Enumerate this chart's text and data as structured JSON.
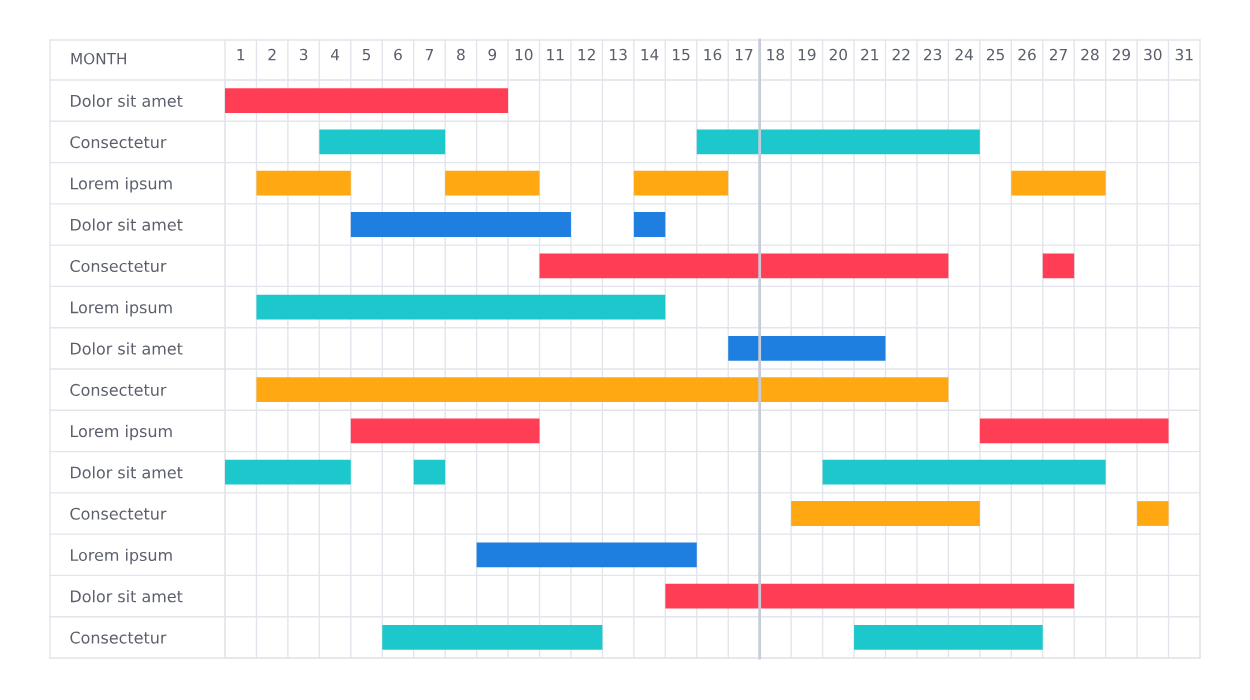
{
  "chart_data": {
    "type": "bar",
    "orientation": "horizontal",
    "xlabel": "MONTH",
    "categories": [
      "Dolor sit amet",
      "Consectetur",
      "Lorem ipsum",
      "Dolor sit amet",
      "Consectetur",
      "Lorem ipsum",
      "Dolor sit amet",
      "Consectetur",
      "Lorem ipsum",
      "Dolor sit amet",
      "Consectetur",
      "Lorem ipsum",
      "Dolor sit amet",
      "Consectetur"
    ],
    "xlim": [
      0,
      31
    ],
    "xticks": [
      {
        "value": 0.5,
        "label": "1"
      },
      {
        "value": 1.5,
        "label": "2"
      },
      {
        "value": 2.5,
        "label": "3"
      },
      {
        "value": 3.5,
        "label": "4"
      },
      {
        "value": 4.5,
        "label": "5"
      },
      {
        "value": 5.5,
        "label": "6"
      },
      {
        "value": 6.5,
        "label": "7"
      },
      {
        "value": 7.5,
        "label": "8"
      },
      {
        "value": 8.5,
        "label": "9"
      },
      {
        "value": 9.5,
        "label": "10"
      },
      {
        "value": 10.5,
        "label": "11"
      },
      {
        "value": 11.5,
        "label": "12"
      },
      {
        "value": 12.5,
        "label": "13"
      },
      {
        "value": 13.5,
        "label": "14"
      },
      {
        "value": 14.5,
        "label": "15"
      },
      {
        "value": 15.5,
        "label": "16"
      },
      {
        "value": 16.5,
        "label": "17"
      },
      {
        "value": 17.5,
        "label": "18"
      },
      {
        "value": 18.5,
        "label": "19"
      },
      {
        "value": 19.5,
        "label": "20"
      },
      {
        "value": 20.5,
        "label": "21"
      },
      {
        "value": 21.5,
        "label": "22"
      },
      {
        "value": 22.5,
        "label": "23"
      },
      {
        "value": 23.5,
        "label": "24"
      },
      {
        "value": 24.5,
        "label": "25"
      },
      {
        "value": 25.5,
        "label": "26"
      },
      {
        "value": 26.5,
        "label": "27"
      },
      {
        "value": 27.5,
        "label": "28"
      },
      {
        "value": 28.5,
        "label": "29"
      },
      {
        "value": 29.5,
        "label": "30"
      },
      {
        "value": 30.5,
        "label": "31"
      }
    ],
    "grid": true,
    "ref_lines": [
      {
        "axis": "x",
        "value": 17,
        "color": "#c8ccd8"
      }
    ],
    "series": [
      {
        "base": [
          0,
          3,
          1,
          4,
          10,
          1,
          16,
          1,
          4,
          0,
          18,
          8,
          14,
          5
        ],
        "values": [
          9,
          4,
          3,
          7,
          13,
          13,
          5,
          22,
          6,
          4,
          6,
          7,
          13,
          7
        ],
        "colors": [
          "#ff3d55",
          "#1cc8cc",
          "#ffa812",
          "#1f7fe0",
          "#ff3d55",
          "#1cc8cc",
          "#1f7fe0",
          "#ffa812",
          "#ff3d55",
          "#1cc8cc",
          "#ffa812",
          "#1f7fe0",
          "#ff3d55",
          "#1cc8cc"
        ]
      },
      {
        "base": [
          null,
          15,
          7,
          13,
          26,
          null,
          null,
          null,
          24,
          6,
          29,
          null,
          null,
          20
        ],
        "values": [
          null,
          9,
          3,
          1,
          1,
          null,
          null,
          null,
          6,
          1,
          1,
          null,
          null,
          6
        ],
        "colors": [
          "#ff3d55",
          "#1cc8cc",
          "#ffa812",
          "#1f7fe0",
          "#ff3d55",
          "#1cc8cc",
          "#1f7fe0",
          "#ffa812",
          "#ff3d55",
          "#1cc8cc",
          "#ffa812",
          "#1f7fe0",
          "#ff3d55",
          "#1cc8cc"
        ]
      },
      {
        "base": [
          null,
          null,
          13,
          null,
          null,
          null,
          null,
          null,
          null,
          19,
          null,
          null,
          null,
          null
        ],
        "values": [
          null,
          null,
          3,
          null,
          null,
          null,
          null,
          null,
          null,
          9,
          null,
          null,
          null,
          null
        ],
        "colors": [
          "#ff3d55",
          "#1cc8cc",
          "#ffa812",
          "#1f7fe0",
          "#ff3d55",
          "#1cc8cc",
          "#1f7fe0",
          "#ffa812",
          "#ff3d55",
          "#1cc8cc",
          "#ffa812",
          "#1f7fe0",
          "#ff3d55",
          "#1cc8cc"
        ]
      },
      {
        "base": [
          null,
          null,
          25,
          null,
          null,
          null,
          null,
          null,
          null,
          null,
          null,
          null,
          null,
          null
        ],
        "values": [
          null,
          null,
          3,
          null,
          null,
          null,
          null,
          null,
          null,
          null,
          null,
          null,
          null,
          null
        ],
        "colors": [
          "#ff3d55",
          "#1cc8cc",
          "#ffa812",
          "#1f7fe0",
          "#ff3d55",
          "#1cc8cc",
          "#1f7fe0",
          "#ffa812",
          "#ff3d55",
          "#1cc8cc",
          "#ffa812",
          "#1f7fe0",
          "#ff3d55",
          "#1cc8cc"
        ]
      }
    ]
  }
}
